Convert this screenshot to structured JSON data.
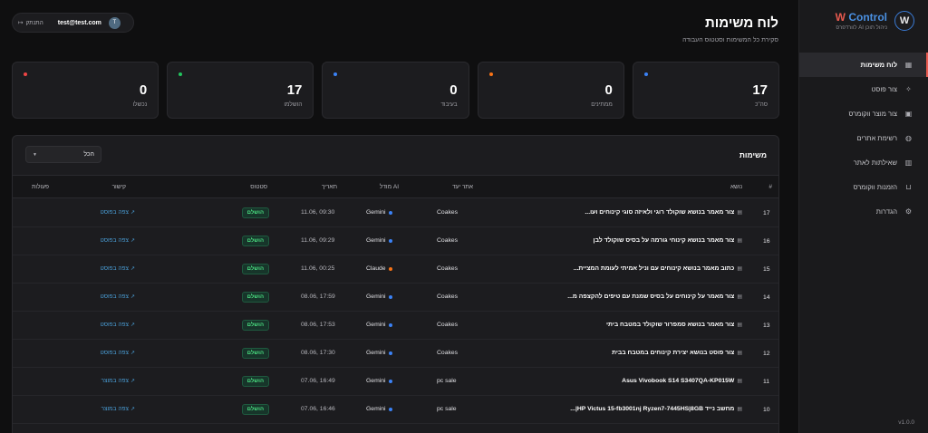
{
  "brand": {
    "name_w": "W",
    "name_rest": " Control",
    "subtitle": "ניהול תוכן AI לוורדפרס",
    "logo_letter": "W"
  },
  "sidebar": {
    "items": [
      {
        "label": "לוח משימות",
        "icon": "dashboard-icon",
        "active": true
      },
      {
        "label": "צור פוסט",
        "icon": "sparkles-icon",
        "active": false
      },
      {
        "label": "צור מוצר ווקומרס",
        "icon": "box-icon",
        "active": false
      },
      {
        "label": "רשימת אתרים",
        "icon": "globe-icon",
        "active": false
      },
      {
        "label": "שאילתות לאתר",
        "icon": "chart-icon",
        "active": false
      },
      {
        "label": "הזמנות ווקומרס",
        "icon": "cart-icon",
        "active": false
      },
      {
        "label": "הגדרות",
        "icon": "gear-icon",
        "active": false
      }
    ],
    "version": "v1.0.0"
  },
  "header": {
    "title": "לוח משימות",
    "subtitle": "סקירת כל המשימות וסטטוס העבודה"
  },
  "user": {
    "email": "test@test.com",
    "avatar_letter": "T",
    "logout_label": "התנתק"
  },
  "stats": [
    {
      "value": "17",
      "label": "סה\"כ",
      "color": "#3b82f6"
    },
    {
      "value": "0",
      "label": "ממתינים",
      "color": "#f97316"
    },
    {
      "value": "0",
      "label": "בעיבוד",
      "color": "#3b82f6"
    },
    {
      "value": "17",
      "label": "הושלמו",
      "color": "#22c55e"
    },
    {
      "value": "0",
      "label": "נכשלו",
      "color": "#ef4444"
    }
  ],
  "tasks": {
    "title": "משימות",
    "filter_value": "הכל",
    "columns": {
      "num": "#",
      "topic": "נושא",
      "site": "אתר יעד",
      "model": "מודל AI",
      "date": "תאריך",
      "status": "סטטוס",
      "link": "קישור",
      "actions": "פעולות"
    },
    "rows": [
      {
        "num": "17",
        "topic": "צור מאמר בנושא שוקולד רוגי ולאיזה סוגי קינוחים ועו...",
        "site": "Coakes",
        "model": "Gemini",
        "model_color": "#3b82f6",
        "date": "09:30 ,11.06",
        "status": "הושלם",
        "link": "צפה בפוסט"
      },
      {
        "num": "16",
        "topic": "צור מאמר בנושא קינוחי גורמה על בסיס שוקולד לבן",
        "site": "Coakes",
        "model": "Gemini",
        "model_color": "#3b82f6",
        "date": "09:29 ,11.06",
        "status": "הושלם",
        "link": "צפה בפוסט"
      },
      {
        "num": "15",
        "topic": "כתוב מאמר בנושא קינוחים עם וניל אמיתי לעומת המציית...",
        "site": "Coakes",
        "model": "Claude",
        "model_color": "#f97316",
        "date": "00:25 ,11.06",
        "status": "הושלם",
        "link": "צפה בפוסט"
      },
      {
        "num": "14",
        "topic": "צור מאמר על קינוחים על בסיס שמנת עם טיפים להקצפה מ...",
        "site": "Coakes",
        "model": "Gemini",
        "model_color": "#3b82f6",
        "date": "17:59 ,08.06",
        "status": "הושלם",
        "link": "צפה בפוסט"
      },
      {
        "num": "13",
        "topic": "צור מאמר בנושא סמפרור שוקולד במטבח ביתי",
        "site": "Coakes",
        "model": "Gemini",
        "model_color": "#3b82f6",
        "date": "17:53 ,08.06",
        "status": "הושלם",
        "link": "צפה בפוסט"
      },
      {
        "num": "12",
        "topic": "צור פוסט בנושא יצירת קינוחים במטבח בבית",
        "site": "Coakes",
        "model": "Gemini",
        "model_color": "#3b82f6",
        "date": "17:30 ,08.06",
        "status": "הושלם",
        "link": "צפה בפוסט"
      },
      {
        "num": "11",
        "topic": "Asus Vivobook S14 S3407QA-KP015W",
        "site": "pc sale",
        "model": "Gemini",
        "model_color": "#3b82f6",
        "date": "16:49 ,07.06",
        "status": "הושלם",
        "link": "צפה במוצר"
      },
      {
        "num": "10",
        "topic": "מחשב נייד HP Victus 15-fb3001nj Ryzen7-7445HS|8GB|...",
        "site": "pc sale",
        "model": "Gemini",
        "model_color": "#3b82f6",
        "date": "16:46 ,07.06",
        "status": "הושלם",
        "link": "צפה במוצר"
      }
    ]
  }
}
